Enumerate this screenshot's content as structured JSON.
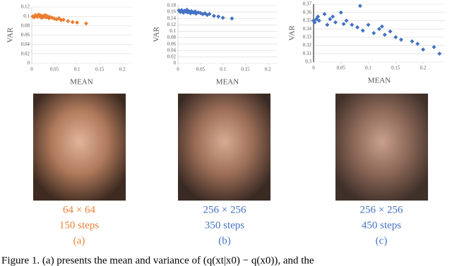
{
  "chart_data": [
    {
      "type": "scatter",
      "x_label": "MEAN",
      "y_label": "VAR",
      "color": "#ed7d31",
      "x": [
        0.002,
        0.005,
        0.008,
        0.01,
        0.012,
        0.015,
        0.018,
        0.02,
        0.022,
        0.025,
        0.028,
        0.03,
        0.032,
        0.035,
        0.038,
        0.04,
        0.045,
        0.05,
        0.055,
        0.06,
        0.065,
        0.07,
        0.08,
        0.09,
        0.1,
        0.12
      ],
      "values": [
        0.1,
        0.098,
        0.103,
        0.101,
        0.099,
        0.104,
        0.1,
        0.102,
        0.097,
        0.101,
        0.099,
        0.103,
        0.098,
        0.1,
        0.096,
        0.099,
        0.097,
        0.095,
        0.094,
        0.096,
        0.092,
        0.093,
        0.09,
        0.088,
        0.087,
        0.085
      ],
      "xlim": [
        0,
        0.22
      ],
      "xticks": [
        0,
        0.05,
        0.1,
        0.15,
        0.2
      ],
      "ylim": [
        0,
        0.12
      ],
      "yticks": [
        0,
        0.02,
        0.04,
        0.06,
        0.08,
        0.1,
        0.12
      ],
      "grid": true
    },
    {
      "type": "scatter",
      "x_label": "MEAN",
      "y_label": "VAR",
      "color": "#4472c4",
      "x": [
        0.002,
        0.005,
        0.008,
        0.01,
        0.012,
        0.015,
        0.018,
        0.02,
        0.022,
        0.025,
        0.028,
        0.03,
        0.032,
        0.035,
        0.038,
        0.04,
        0.045,
        0.05,
        0.055,
        0.06,
        0.065,
        0.07,
        0.08,
        0.09,
        0.1,
        0.12
      ],
      "values": [
        0.165,
        0.16,
        0.166,
        0.163,
        0.158,
        0.164,
        0.161,
        0.167,
        0.159,
        0.162,
        0.156,
        0.163,
        0.16,
        0.158,
        0.162,
        0.155,
        0.159,
        0.157,
        0.153,
        0.156,
        0.151,
        0.154,
        0.148,
        0.146,
        0.142,
        0.14
      ],
      "xlim": [
        0,
        0.22
      ],
      "xticks": [
        0,
        0.05,
        0.1,
        0.15,
        0.2
      ],
      "ylim": [
        0,
        0.18
      ],
      "yticks": [
        0,
        0.02,
        0.04,
        0.06,
        0.08,
        0.1,
        0.12,
        0.14,
        0.16,
        0.18
      ],
      "grid": true
    },
    {
      "type": "scatter",
      "x_label": "MEAN",
      "y_label": "VAR",
      "color": "#4472c4",
      "x": [
        0,
        0.002,
        0.005,
        0.008,
        0.01,
        0.02,
        0.025,
        0.03,
        0.035,
        0.04,
        0.05,
        0.055,
        0.06,
        0.07,
        0.08,
        0.085,
        0.09,
        0.1,
        0.11,
        0.12,
        0.125,
        0.13,
        0.14,
        0.15,
        0.16,
        0.18,
        0.19,
        0.2,
        0.22,
        0.23
      ],
      "values": [
        0.35,
        0.348,
        0.352,
        0.355,
        0.35,
        0.358,
        0.345,
        0.352,
        0.355,
        0.348,
        0.36,
        0.346,
        0.35,
        0.345,
        0.342,
        0.368,
        0.338,
        0.345,
        0.335,
        0.34,
        0.343,
        0.333,
        0.337,
        0.33,
        0.327,
        0.325,
        0.322,
        0.315,
        0.318,
        0.31
      ],
      "xlim": [
        0,
        0.24
      ],
      "xticks": [
        0,
        0.05,
        0.1,
        0.15,
        0.2
      ],
      "ylim": [
        0.3,
        0.37
      ],
      "yticks": [
        0.3,
        0.31,
        0.32,
        0.33,
        0.34,
        0.35,
        0.36,
        0.37
      ],
      "grid": true
    }
  ],
  "panels": [
    {
      "size": "64 × 64",
      "steps": "150 steps",
      "label": "(a)",
      "color": "#ed7d31"
    },
    {
      "size": "256 × 256",
      "steps": "350 steps",
      "label": "(b)",
      "color": "#4472c4"
    },
    {
      "size": "256 × 256",
      "steps": "450 steps",
      "label": "(c)",
      "color": "#4472c4"
    }
  ],
  "caption": "Figure 1.  (a) presents the mean and variance of (q(xt|x0) − q(x0)), and the"
}
